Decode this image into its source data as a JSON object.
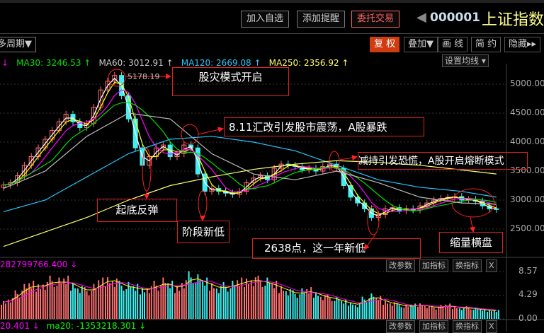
{
  "header": {
    "add_watch": "加入自选",
    "add_alert": "添加提醒",
    "trade": "委托交易",
    "code": "000001",
    "name": "上证指数"
  },
  "toolbar": {
    "period": "多周期▼",
    "fuquan": "复 权",
    "overlay": "叠加▼",
    "draw": "画 线",
    "simple": "简 约",
    "hide": "隐藏▸▸",
    "ma_settings": "设置均线 ▾"
  },
  "ma_legend": [
    {
      "label": "MA30: 3246.53 ↑",
      "color": "#00e000"
    },
    {
      "label": "MA60: 3012.91 ↑",
      "color": "#cccccc"
    },
    {
      "label": "MA120: 2669.08 ↑",
      "color": "#22c8ff"
    },
    {
      "label": "MA250: 2356.92 ↑",
      "color": "#ffff66"
    }
  ],
  "volume_panel": {
    "legend": "282799766.400 ↓",
    "btn_params": "改参数",
    "btn_add": "加指标",
    "btn_switch": "换指标",
    "btn_close": "X"
  },
  "bottom_panel": {
    "legend1": "20.401 ↓",
    "legend2": "ma20: -1353218.301 ↓",
    "btn_params": "改参数",
    "btn_add": "加指标",
    "btn_switch": "换指标",
    "btn_close": "X"
  },
  "annotations": {
    "peak_label": "5178.19",
    "a1": "股灾模式开启",
    "a2": "8.11汇改引发股市震荡，A股暴跌",
    "a3": "减持引发恐慌，A股开启熔断模式",
    "a4": "起底反弹",
    "a5": "阶段新低",
    "a6": "2638点，这一年新低",
    "a7": "缩量横盘"
  },
  "colors": {
    "up": "#ff7070",
    "down": "#40f0f0",
    "annotation": "#ff2020",
    "ma5": "#ffffff",
    "ma10": "#ffff00",
    "ma20": "#ff00ff",
    "ma30": "#00e000",
    "ma60": "#bbbbbb",
    "ma120": "#22c8ff",
    "ma250": "#ffff66"
  },
  "chart_data": {
    "type": "candlestick",
    "price_ticks": [
      "5000.00",
      "4500.00",
      "4000.00",
      "3500.00",
      "3000.00",
      "2500.00"
    ],
    "volume_ticks": [
      "8.57",
      "4.29",
      "0.00"
    ],
    "ylim": [
      2350,
      5300
    ],
    "grid": true,
    "close": [
      3260,
      3300,
      3420,
      3600,
      3750,
      3900,
      4050,
      4200,
      4350,
      4480,
      4350,
      4250,
      4320,
      4600,
      4900,
      5050,
      5150,
      4800,
      4400,
      3900,
      3600,
      3750,
      3900,
      3950,
      3750,
      3800,
      3950,
      3900,
      3450,
      3150,
      3200,
      3150,
      3120,
      3100,
      3150,
      3300,
      3380,
      3420,
      3350,
      3550,
      3620,
      3600,
      3580,
      3520,
      3550,
      3500,
      3580,
      3620,
      3550,
      3250,
      3050,
      2950,
      2850,
      2700,
      2750,
      2850,
      2870,
      2820,
      2850,
      2830,
      2900,
      2950,
      3000,
      3030,
      3050,
      3060,
      3000,
      3010,
      2980,
      2900,
      2850,
      2840
    ],
    "ma60": [
      3200,
      3500,
      4100,
      4500,
      4400,
      3800,
      3450,
      3350,
      3500,
      3300,
      3050,
      2950,
      2930
    ],
    "ma120": [
      2800,
      3000,
      3400,
      3800,
      4050,
      4100,
      4000,
      3850,
      3600,
      3350,
      3220,
      3150,
      3050
    ],
    "ma250": [
      2200,
      2450,
      2700,
      3000,
      3250,
      3400,
      3530,
      3620,
      3680,
      3650,
      3600,
      3520,
      3450
    ],
    "volume": [
      3,
      3.5,
      4.5,
      5.5,
      6,
      5.8,
      6.2,
      6.8,
      6.5,
      6.8,
      6,
      5.5,
      5,
      5.5,
      6.5,
      7,
      6.8,
      6,
      5.8,
      5.5,
      5.2,
      5.5,
      6,
      6.5,
      6,
      5.5,
      6.5,
      7.5,
      7,
      6.5,
      6,
      5.5,
      5.8,
      6,
      6.5,
      6.8,
      7,
      6.8,
      6.5,
      6,
      5.5,
      5,
      4.5,
      4.8,
      5,
      4.5,
      4,
      3.8,
      3.5,
      3,
      2.8,
      2.5,
      3.5,
      4,
      3.6,
      3,
      2.8,
      2.5,
      2.2,
      2.4,
      2.6,
      2.3,
      2,
      2.2,
      2.4,
      2.1,
      1.9,
      2,
      1.8,
      1.6,
      1.5,
      1.5
    ]
  }
}
